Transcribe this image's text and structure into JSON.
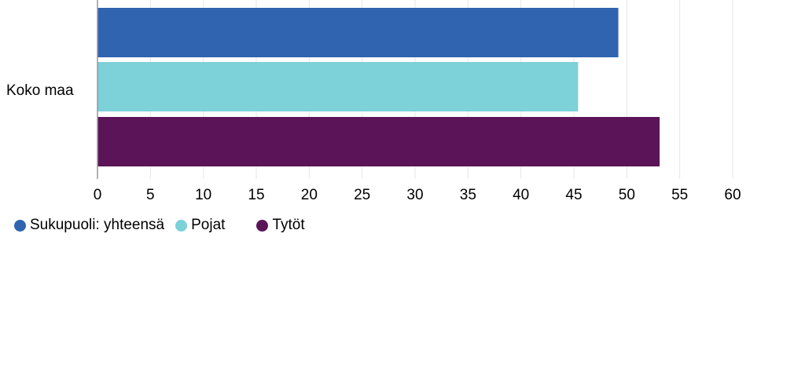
{
  "chart_data": {
    "type": "bar",
    "orientation": "horizontal",
    "categories": [
      "Koko maa"
    ],
    "series": [
      {
        "name": "Sukupuoli: yhteensä",
        "values": [
          49.2
        ],
        "color": "#3063b0"
      },
      {
        "name": "Pojat",
        "values": [
          45.4
        ],
        "color": "#7dd1d9"
      },
      {
        "name": "Tytöt",
        "values": [
          53.1
        ],
        "color": "#5a1457"
      }
    ],
    "xlim": [
      0,
      60
    ],
    "xticks": [
      "0",
      "5",
      "10",
      "15",
      "20",
      "25",
      "30",
      "35",
      "40",
      "45",
      "50",
      "55",
      "60"
    ],
    "title": "",
    "xlabel": "",
    "ylabel": "",
    "grid": true,
    "legend_position": "bottom-left"
  }
}
